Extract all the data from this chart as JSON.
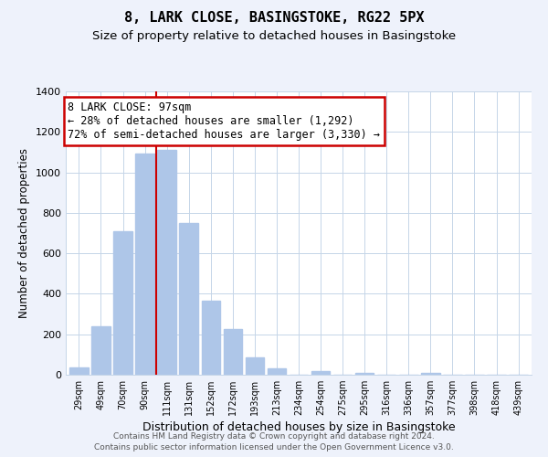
{
  "title": "8, LARK CLOSE, BASINGSTOKE, RG22 5PX",
  "subtitle": "Size of property relative to detached houses in Basingstoke",
  "xlabel": "Distribution of detached houses by size in Basingstoke",
  "ylabel": "Number of detached properties",
  "bar_labels": [
    "29sqm",
    "49sqm",
    "70sqm",
    "90sqm",
    "111sqm",
    "131sqm",
    "152sqm",
    "172sqm",
    "193sqm",
    "213sqm",
    "234sqm",
    "254sqm",
    "275sqm",
    "295sqm",
    "316sqm",
    "336sqm",
    "357sqm",
    "377sqm",
    "398sqm",
    "418sqm",
    "439sqm"
  ],
  "bar_values": [
    35,
    240,
    710,
    1095,
    1110,
    750,
    365,
    225,
    88,
    30,
    0,
    20,
    0,
    10,
    0,
    0,
    10,
    0,
    0,
    0,
    0
  ],
  "bar_color": "#aec6e8",
  "bar_edgecolor": "#aec6e8",
  "vline_x": 3.5,
  "vline_color": "#cc0000",
  "annotation_text": "8 LARK CLOSE: 97sqm\n← 28% of detached houses are smaller (1,292)\n72% of semi-detached houses are larger (3,330) →",
  "annotation_box_edgecolor": "#cc0000",
  "annotation_box_facecolor": "#ffffff",
  "ylim": [
    0,
    1400
  ],
  "yticks": [
    0,
    200,
    400,
    600,
    800,
    1000,
    1200,
    1400
  ],
  "footer1": "Contains HM Land Registry data © Crown copyright and database right 2024.",
  "footer2": "Contains public sector information licensed under the Open Government Licence v3.0.",
  "title_fontsize": 11,
  "subtitle_fontsize": 9.5,
  "xlabel_fontsize": 9,
  "ylabel_fontsize": 8.5,
  "annotation_fontsize": 8.5,
  "bg_color": "#eef2fb",
  "plot_bg_color": "#ffffff",
  "grid_color": "#c5d5e8"
}
